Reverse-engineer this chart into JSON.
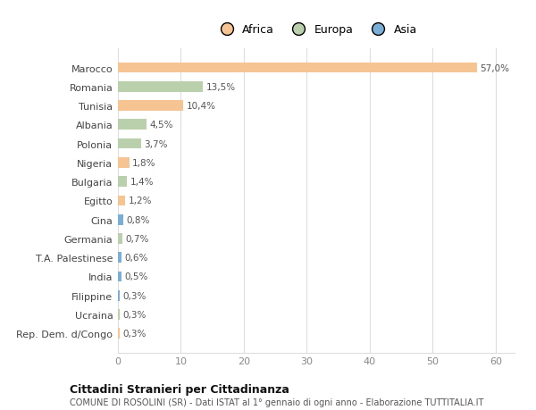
{
  "countries": [
    "Marocco",
    "Romania",
    "Tunisia",
    "Albania",
    "Polonia",
    "Nigeria",
    "Bulgaria",
    "Egitto",
    "Cina",
    "Germania",
    "T.A. Palestinese",
    "India",
    "Filippine",
    "Ucraina",
    "Rep. Dem. d/Congo"
  ],
  "values": [
    57.0,
    13.5,
    10.4,
    4.5,
    3.7,
    1.8,
    1.4,
    1.2,
    0.8,
    0.7,
    0.6,
    0.5,
    0.3,
    0.3,
    0.3
  ],
  "categories": [
    "Africa",
    "Europa",
    "Africa",
    "Europa",
    "Europa",
    "Africa",
    "Europa",
    "Africa",
    "Asia",
    "Europa",
    "Asia",
    "Asia",
    "Asia",
    "Europa",
    "Africa"
  ],
  "labels": [
    "57,0%",
    "13,5%",
    "10,4%",
    "4,5%",
    "3,7%",
    "1,8%",
    "1,4%",
    "1,2%",
    "0,8%",
    "0,7%",
    "0,6%",
    "0,5%",
    "0,3%",
    "0,3%",
    "0,3%"
  ],
  "colors": {
    "Africa": "#F5C492",
    "Europa": "#BACFAC",
    "Asia": "#7AAED6"
  },
  "title": "Cittadini Stranieri per Cittadinanza",
  "subtitle": "COMUNE DI ROSOLINI (SR) - Dati ISTAT al 1° gennaio di ogni anno - Elaborazione TUTTITALIA.IT",
  "xlim": [
    0,
    63
  ],
  "xticks": [
    0,
    10,
    20,
    30,
    40,
    50,
    60
  ],
  "background_color": "#ffffff",
  "grid_color": "#dddddd",
  "legend_order": [
    "Africa",
    "Europa",
    "Asia"
  ]
}
